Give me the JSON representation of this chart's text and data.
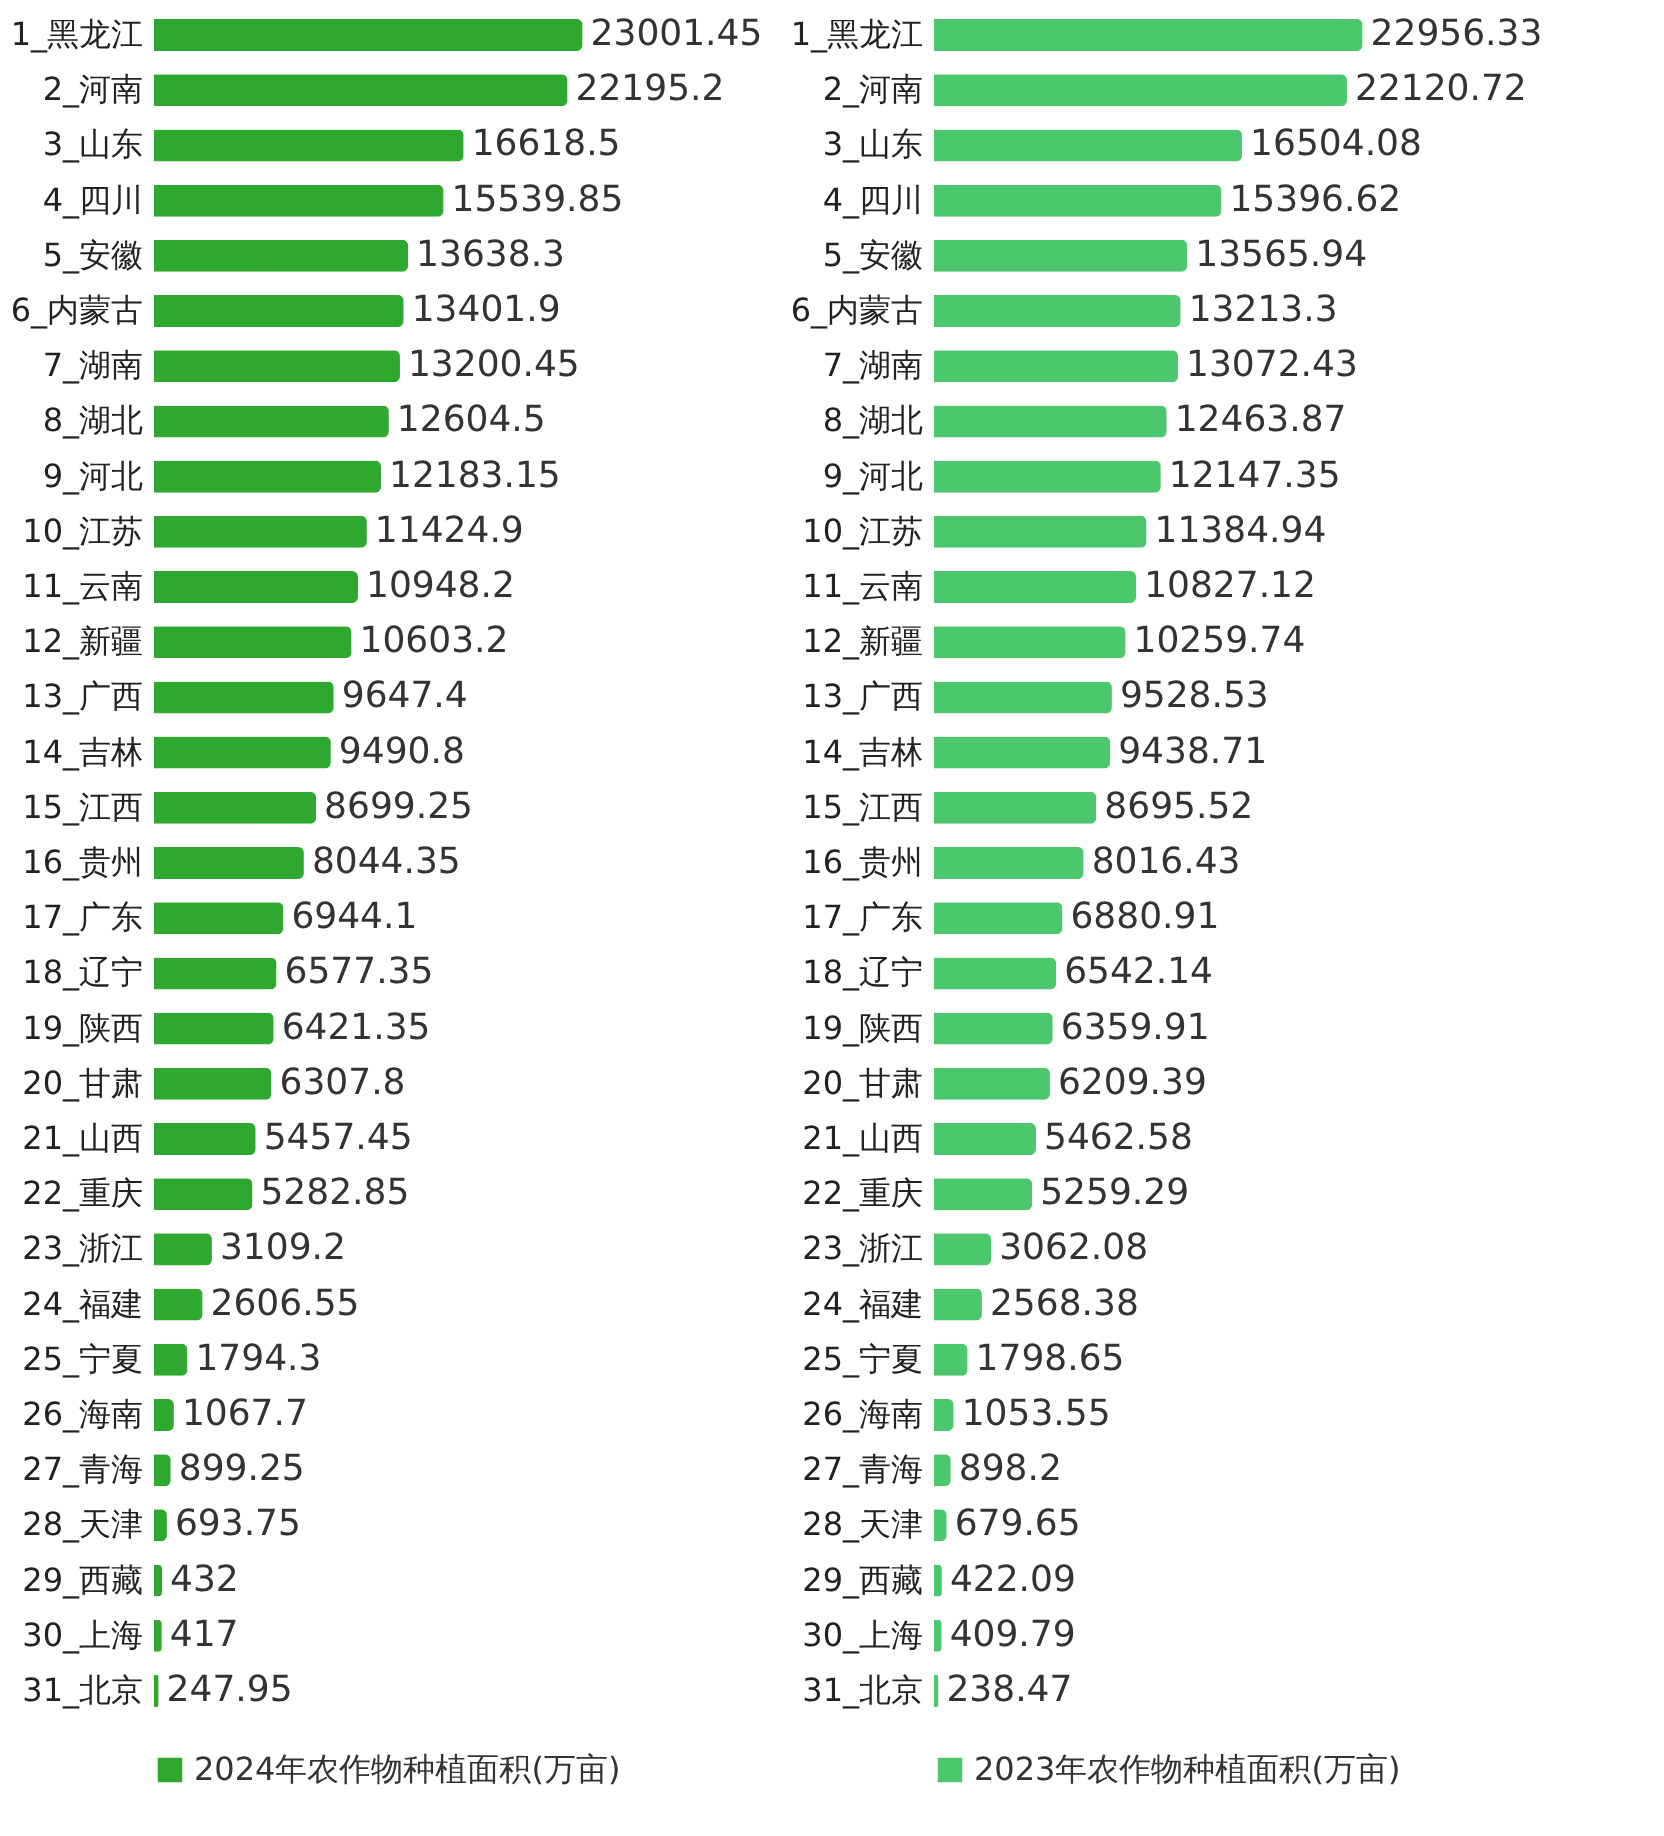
{
  "chart_data": [
    {
      "type": "bar",
      "orientation": "horizontal",
      "data_labels": true,
      "legend": "bottom",
      "categories": [
        "1_黑龙江",
        "2_河南",
        "3_山东",
        "4_四川",
        "5_安徽",
        "6_内蒙古",
        "7_湖南",
        "8_湖北",
        "9_河北",
        "10_江苏",
        "11_云南",
        "12_新疆",
        "13_广西",
        "14_吉林",
        "15_江西",
        "16_贵州",
        "17_广东",
        "18_辽宁",
        "19_陕西",
        "20_甘肃",
        "21_山西",
        "22_重庆",
        "23_浙江",
        "24_福建",
        "25_宁夏",
        "26_海南",
        "27_青海",
        "28_天津",
        "29_西藏",
        "30_上海",
        "31_北京"
      ],
      "series": [
        {
          "name": "2024年农作物种植面积(万亩)",
          "color": "#2fa82f",
          "values": [
            23001.45,
            22195.2,
            16618.5,
            15539.85,
            13638.3,
            13401.9,
            13200.45,
            12604.5,
            12183.15,
            11424.9,
            10948.2,
            10603.2,
            9647.4,
            9490.8,
            8699.25,
            8044.35,
            6944.1,
            6577.35,
            6421.35,
            6307.8,
            5457.45,
            5282.85,
            3109.2,
            2606.55,
            1794.3,
            1067.7,
            899.25,
            693.75,
            432,
            417,
            247.95
          ]
        }
      ]
    },
    {
      "type": "bar",
      "orientation": "horizontal",
      "data_labels": true,
      "legend": "bottom",
      "categories": [
        "1_黑龙江",
        "2_河南",
        "3_山东",
        "4_四川",
        "5_安徽",
        "6_内蒙古",
        "7_湖南",
        "8_湖北",
        "9_河北",
        "10_江苏",
        "11_云南",
        "12_新疆",
        "13_广西",
        "14_吉林",
        "15_江西",
        "16_贵州",
        "17_广东",
        "18_辽宁",
        "19_陕西",
        "20_甘肃",
        "21_山西",
        "22_重庆",
        "23_浙江",
        "24_福建",
        "25_宁夏",
        "26_海南",
        "27_青海",
        "28_天津",
        "29_西藏",
        "30_上海",
        "31_北京"
      ],
      "series": [
        {
          "name": "2023年农作物种植面积(万亩)",
          "color": "#4cc76e",
          "values": [
            22956.33,
            22120.72,
            16504.08,
            15396.62,
            13565.94,
            13213.3,
            13072.43,
            12463.87,
            12147.35,
            11384.94,
            10827.12,
            10259.74,
            9528.53,
            9438.71,
            8695.52,
            8016.43,
            6880.91,
            6542.14,
            6359.91,
            6209.39,
            5462.58,
            5259.29,
            3062.08,
            2568.38,
            1798.65,
            1053.55,
            898.2,
            679.65,
            422.09,
            409.79,
            238.47
          ]
        }
      ]
    }
  ]
}
